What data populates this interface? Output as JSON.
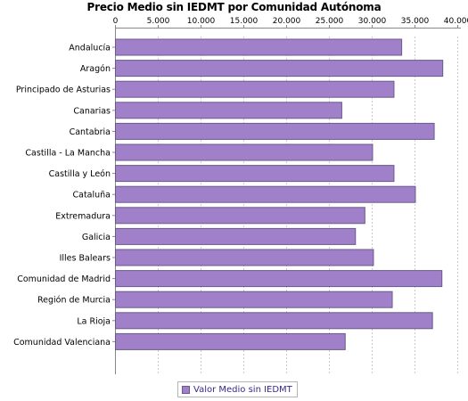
{
  "chart_data": {
    "type": "bar",
    "orientation": "horizontal",
    "title": "Precio Medio sin IEDMT por Comunidad Autónoma",
    "xlabel": "",
    "ylabel": "",
    "categories": [
      "Andalucía",
      "Aragón",
      "Principado de Asturias",
      "Canarias",
      "Cantabria",
      "Castilla - La Mancha",
      "Castilla y León",
      "Cataluña",
      "Extremadura",
      "Galicia",
      "Illes Balears",
      "Comunidad de Madrid",
      "Región de Murcia",
      "La Rioja",
      "Comunidad Valenciana"
    ],
    "series": [
      {
        "name": "Valor Medio sin IEDMT",
        "values": [
          33500,
          38300,
          32600,
          26500,
          37300,
          30100,
          32600,
          35100,
          29200,
          28100,
          30200,
          38200,
          32400,
          37100,
          26900
        ]
      }
    ],
    "xlim": [
      0,
      40000
    ],
    "xticks": [
      0,
      5000,
      10000,
      15000,
      20000,
      25000,
      30000,
      35000,
      40000
    ],
    "xtick_labels": [
      "0",
      "5.000",
      "10.000",
      "15.000",
      "20.000",
      "25.000",
      "30.000",
      "35.000",
      "40.000"
    ],
    "x_axis_position": "top",
    "grid": true,
    "legend_position": "bottom",
    "colors": {
      "bar_fill": "#a080c8",
      "bar_stroke": "#6a5a8a",
      "legend_text": "#3a2a8a",
      "grid": "#cccccc"
    }
  }
}
